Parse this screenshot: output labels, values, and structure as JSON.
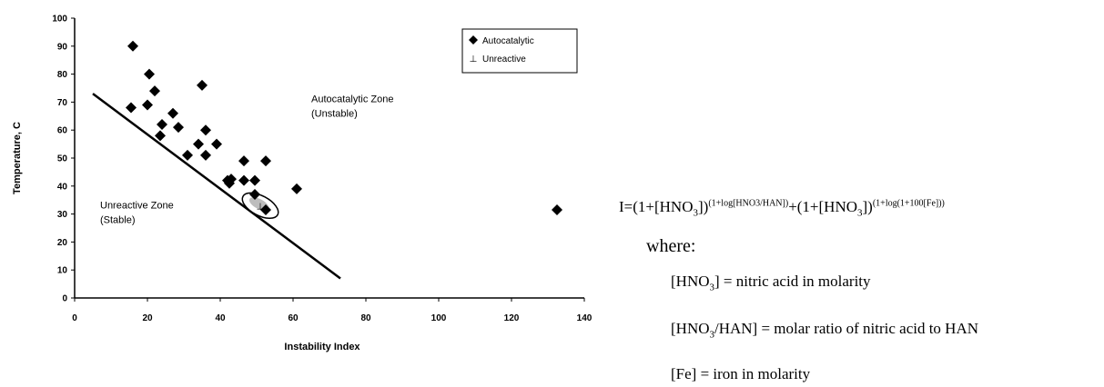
{
  "chart_data": {
    "type": "scatter",
    "title": "",
    "xlabel": "Instability Index",
    "ylabel": "Temperature, C",
    "xlim": [
      0,
      140
    ],
    "ylim": [
      0,
      100
    ],
    "x_ticks": [
      "0",
      "20",
      "40",
      "60",
      "80",
      "100",
      "120",
      "140"
    ],
    "y_ticks": [
      "0",
      "10",
      "20",
      "30",
      "40",
      "50",
      "60",
      "70",
      "80",
      "90",
      "100"
    ],
    "grid": false,
    "legend_position": "top-right",
    "series": [
      {
        "name": "Autocatalytic",
        "marker": "diamond",
        "color": "#000000",
        "points": [
          [
            16,
            90
          ],
          [
            20.5,
            80
          ],
          [
            22,
            74
          ],
          [
            35,
            76
          ],
          [
            15.5,
            68
          ],
          [
            20,
            69
          ],
          [
            27,
            66
          ],
          [
            24,
            62
          ],
          [
            28.5,
            61
          ],
          [
            23.5,
            58
          ],
          [
            36,
            60
          ],
          [
            39,
            55
          ],
          [
            34,
            55
          ],
          [
            36,
            51
          ],
          [
            31,
            51
          ],
          [
            46.5,
            49
          ],
          [
            52.5,
            49
          ],
          [
            42,
            42
          ],
          [
            43,
            42.5
          ],
          [
            46.5,
            42
          ],
          [
            49.5,
            42
          ],
          [
            42.5,
            41
          ],
          [
            49.5,
            37
          ],
          [
            61,
            39
          ],
          [
            52.5,
            31.5
          ],
          [
            132.5,
            31.5
          ]
        ]
      },
      {
        "name": "Unreactive",
        "marker": "⊥",
        "color": "#000000",
        "points": [
          [
            51,
            33
          ]
        ]
      }
    ],
    "boundary_line": [
      [
        5,
        73
      ],
      [
        73,
        7
      ]
    ],
    "unreactive_cluster": {
      "center": [
        51,
        33
      ],
      "radius": [
        4,
        2.6
      ]
    },
    "annotations": [
      {
        "lines": [
          "Autocatalytic Zone",
          "(Unstable)"
        ],
        "x": 65,
        "y": 70
      },
      {
        "lines": [
          "Unreactive Zone",
          "(Stable)"
        ],
        "x": 7,
        "y": 32
      }
    ],
    "legend": [
      {
        "label": "Autocatalytic",
        "marker": "◆"
      },
      {
        "label": "Unreactive",
        "marker": "⊥"
      }
    ]
  },
  "formula": {
    "lhs": "I=(1+[HNO",
    "sub1": "3",
    "mid1": "])",
    "exp1": "(1+log[HNO3/HAN])",
    "plus": "+(1+[HNO",
    "sub2": "3",
    "mid2": "])",
    "exp2": "(1+log(1+100[Fe]))"
  },
  "where_label": "where:",
  "definitions": [
    {
      "pre": "[HNO",
      "sub": "3",
      "post": "] = nitric acid in molarity"
    },
    {
      "pre": "[HNO",
      "sub": "3",
      "post": "/HAN] = molar ratio of nitric acid to HAN"
    },
    {
      "pre": "[Fe] = iron in molarity",
      "sub": "",
      "post": ""
    }
  ]
}
